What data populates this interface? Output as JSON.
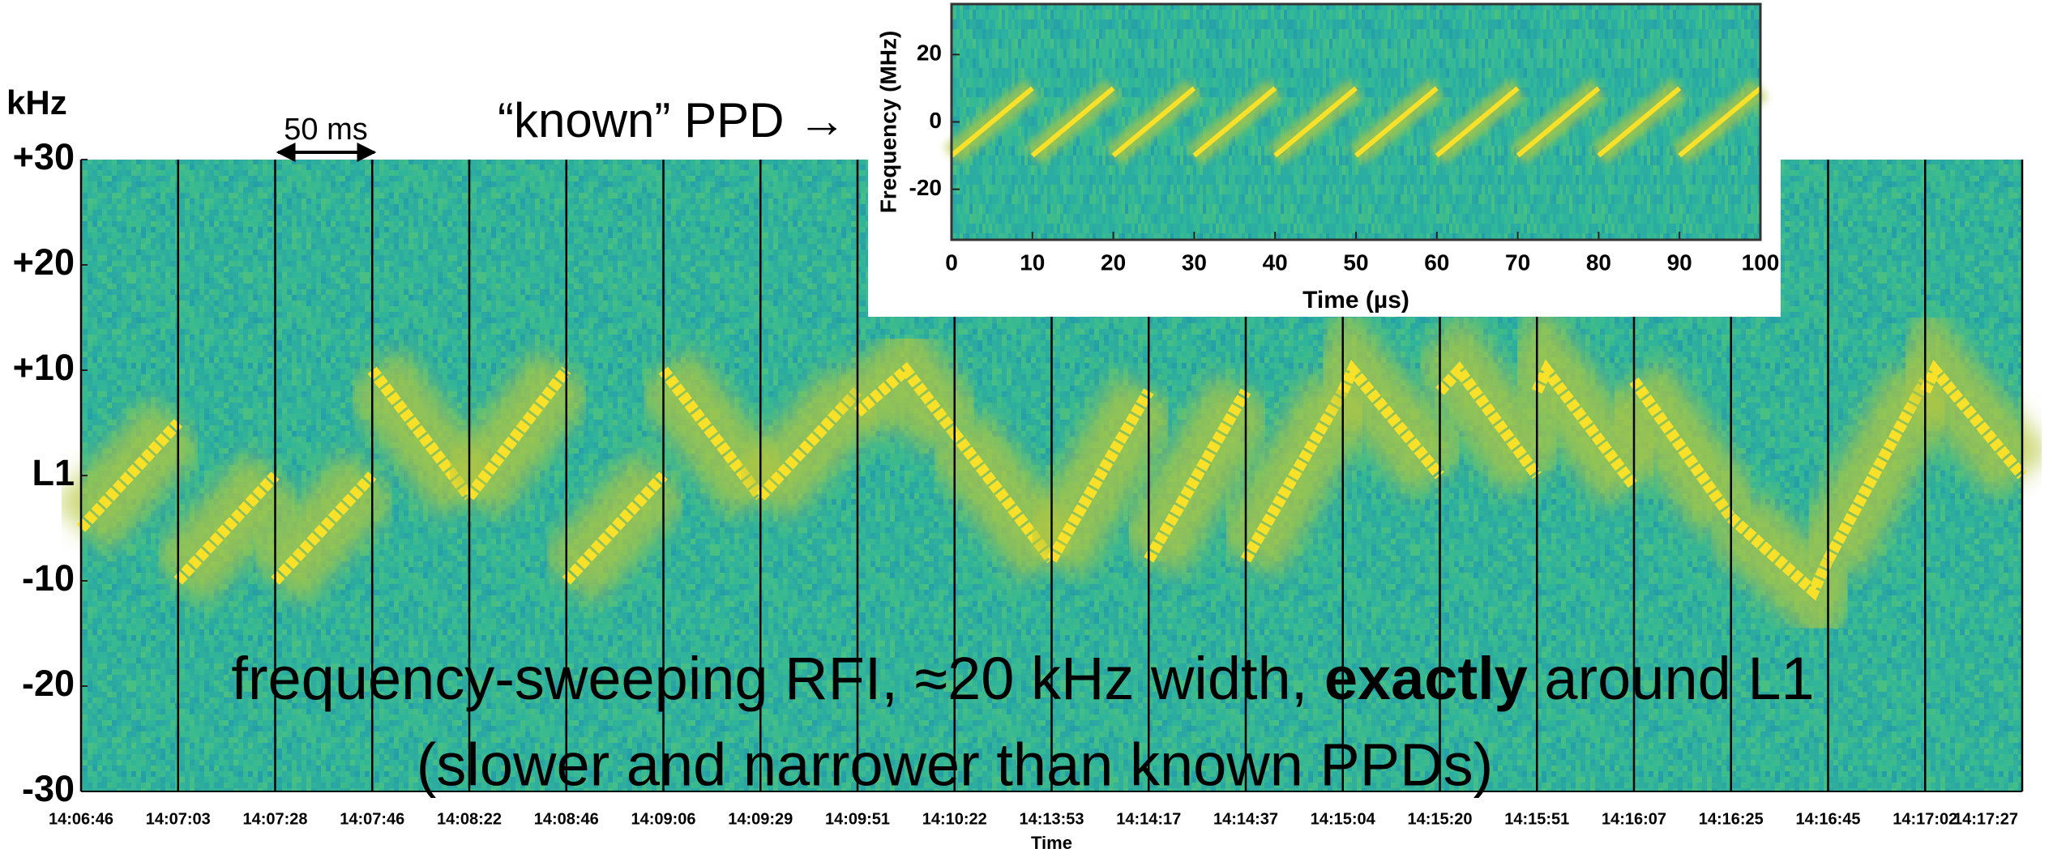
{
  "chart_data": [
    {
      "type": "spectrogram",
      "ylabel": "kHz",
      "xlabel": "Time",
      "categories": [
        "14:06:46",
        "14:07:03",
        "14:07:28",
        "14:07:46",
        "14:08:22",
        "14:08:46",
        "14:09:06",
        "14:09:29",
        "14:09:51",
        "14:10:22",
        "14:13:53",
        "14:14:17",
        "14:14:37",
        "14:15:04",
        "14:15:20",
        "14:15:51",
        "14:16:07",
        "14:16:25",
        "14:16:45",
        "14:17:02",
        "14:17:27"
      ],
      "ylim": [
        -30,
        30
      ],
      "yticks": [
        {
          "value": 30,
          "label": "+30"
        },
        {
          "value": 20,
          "label": "+20"
        },
        {
          "value": 10,
          "label": "+10"
        },
        {
          "value": 0,
          "label": "L1"
        },
        -10,
        -20,
        -30
      ],
      "background": "#33b59a",
      "color": "#f9e12a",
      "sweep": [
        {
          "x": [
            0,
            1
          ],
          "values": [
            -5,
            5
          ]
        },
        {
          "x": [
            1,
            2
          ],
          "values": [
            -10,
            0
          ]
        },
        {
          "x": [
            2,
            3
          ],
          "values": [
            -10,
            0
          ]
        },
        {
          "x": [
            3,
            4
          ],
          "values": [
            10,
            -2
          ]
        },
        {
          "x": [
            4,
            5
          ],
          "values": [
            -2,
            10
          ]
        },
        {
          "x": [
            5,
            6
          ],
          "values": [
            -10,
            0
          ]
        },
        {
          "x": [
            6,
            7
          ],
          "values": [
            10,
            -2
          ]
        },
        {
          "x": [
            7,
            8
          ],
          "values": [
            -2,
            8
          ]
        },
        {
          "x": [
            8,
            8.5,
            9
          ],
          "values": [
            6,
            10,
            4
          ]
        },
        {
          "x": [
            9,
            10
          ],
          "values": [
            4,
            -8
          ]
        },
        {
          "x": [
            10,
            11
          ],
          "values": [
            -8,
            8
          ]
        },
        {
          "x": [
            11,
            12
          ],
          "values": [
            -8,
            8
          ]
        },
        {
          "x": [
            12,
            13
          ],
          "values": [
            -8,
            8
          ]
        },
        {
          "x": [
            13,
            13.1,
            14
          ],
          "values": [
            8,
            10,
            0
          ]
        },
        {
          "x": [
            14,
            14.2,
            15
          ],
          "values": [
            8,
            10,
            0
          ]
        },
        {
          "x": [
            15,
            15.1,
            16
          ],
          "values": [
            8,
            10,
            -1
          ]
        },
        {
          "x": [
            16,
            17
          ],
          "values": [
            9,
            -4
          ]
        },
        {
          "x": [
            17,
            17.85,
            18
          ],
          "values": [
            -4,
            -11,
            -8
          ]
        },
        {
          "x": [
            18,
            19
          ],
          "values": [
            -8,
            9
          ]
        },
        {
          "x": [
            19,
            19.1,
            20
          ],
          "values": [
            8,
            10,
            0
          ]
        }
      ]
    },
    {
      "type": "spectrogram",
      "xlabel": "Time (µs)",
      "ylabel": "Frequency (MHz)",
      "xlim": [
        0,
        100
      ],
      "xticks": [
        0,
        10,
        20,
        30,
        40,
        50,
        60,
        70,
        80,
        90,
        100
      ],
      "ylim": [
        -35,
        35
      ],
      "yticks": [
        -20,
        0,
        20
      ],
      "background": "#2fb59f",
      "color": "#f9e12a",
      "sweep": [
        {
          "x": [
            0,
            10
          ],
          "values": [
            -10,
            10
          ]
        },
        {
          "x": [
            10,
            20
          ],
          "values": [
            -10,
            10
          ]
        },
        {
          "x": [
            20,
            30
          ],
          "values": [
            -10,
            10
          ]
        },
        {
          "x": [
            30,
            40
          ],
          "values": [
            -10,
            10
          ]
        },
        {
          "x": [
            40,
            50
          ],
          "values": [
            -10,
            10
          ]
        },
        {
          "x": [
            50,
            60
          ],
          "values": [
            -10,
            10
          ]
        },
        {
          "x": [
            60,
            70
          ],
          "values": [
            -10,
            10
          ]
        },
        {
          "x": [
            70,
            80
          ],
          "values": [
            -10,
            10
          ]
        },
        {
          "x": [
            80,
            90
          ],
          "values": [
            -10,
            10
          ]
        },
        {
          "x": [
            90,
            100
          ],
          "values": [
            -10,
            10
          ]
        }
      ]
    }
  ],
  "annotations": {
    "scale_bar": "50 ms",
    "pointer": "“known” PPD →",
    "caption": [
      "frequency-sweeping RFI, ≈20 kHz width, ",
      "exactly",
      " around L1"
    ],
    "caption_note": "(slower and narrower than known PPDs)"
  }
}
